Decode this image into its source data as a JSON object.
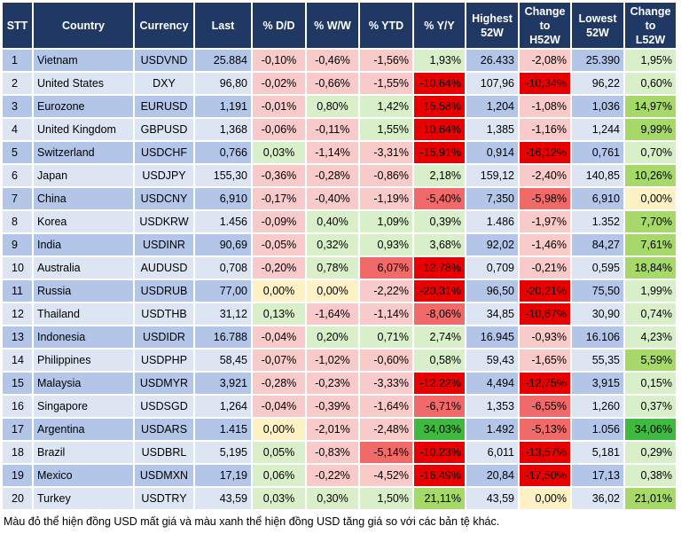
{
  "headers": [
    "STT",
    "Country",
    "Currency",
    "Last",
    "% D/D",
    "% W/W",
    "% YTD",
    "% Y/Y",
    "Highest\n52W",
    "Change\nto\nH52W",
    "Lowest\n52W",
    "Change\nto\nL52W"
  ],
  "rows": [
    {
      "stt": "1",
      "country": "Vietnam",
      "currency": "USDVND",
      "last": "25.884",
      "dd": "-0,10%",
      "ww": "-0,46%",
      "ytd": "-1,56%",
      "yy": "1,93%",
      "h52": "26.433",
      "ch52": "-2,08%",
      "l52": "25.390",
      "cl52": "1,95%",
      "t": [
        "neg1",
        "neg1",
        "neg1",
        "pos1",
        "plain",
        "neg1",
        "plain",
        "pos1"
      ]
    },
    {
      "stt": "2",
      "country": "United States",
      "currency": "DXY",
      "last": "96,80",
      "dd": "-0,02%",
      "ww": "-0,66%",
      "ytd": "-1,55%",
      "yy": "-10,64%",
      "h52": "107,96",
      "ch52": "-10,34%",
      "l52": "96,22",
      "cl52": "0,60%",
      "t": [
        "neg1",
        "neg1",
        "neg1",
        "neg3",
        "plain",
        "neg3",
        "plain",
        "pos1"
      ]
    },
    {
      "stt": "3",
      "country": "Eurozone",
      "currency": "EURUSD",
      "last": "1,191",
      "dd": "-0,01%",
      "ww": "0,80%",
      "ytd": "1,42%",
      "yy": "15,58%",
      "h52": "1,204",
      "ch52": "-1,08%",
      "l52": "1,036",
      "cl52": "14,97%",
      "t": [
        "neg1",
        "pos1",
        "pos1",
        "neg3",
        "plain",
        "neg1",
        "plain",
        "pos2"
      ]
    },
    {
      "stt": "4",
      "country": "United Kingdom",
      "currency": "GBPUSD",
      "last": "1,368",
      "dd": "-0,06%",
      "ww": "-0,11%",
      "ytd": "1,55%",
      "yy": "10,64%",
      "h52": "1,385",
      "ch52": "-1,16%",
      "l52": "1,244",
      "cl52": "9,99%",
      "t": [
        "neg1",
        "neg1",
        "pos1",
        "neg3",
        "plain",
        "neg1",
        "plain",
        "pos2"
      ]
    },
    {
      "stt": "5",
      "country": "Switzerland",
      "currency": "USDCHF",
      "last": "0,766",
      "dd": "0,03%",
      "ww": "-1,14%",
      "ytd": "-3,31%",
      "yy": "-15,91%",
      "h52": "0,914",
      "ch52": "-16,12%",
      "l52": "0,761",
      "cl52": "0,70%",
      "t": [
        "pos1",
        "neg1",
        "neg1",
        "neg3",
        "plain",
        "neg3",
        "plain",
        "pos1"
      ]
    },
    {
      "stt": "6",
      "country": "Japan",
      "currency": "USDJPY",
      "last": "155,30",
      "dd": "-0,36%",
      "ww": "-0,28%",
      "ytd": "-0,86%",
      "yy": "2,18%",
      "h52": "159,12",
      "ch52": "-2,40%",
      "l52": "140,85",
      "cl52": "10,26%",
      "t": [
        "neg1",
        "neg1",
        "neg1",
        "pos1",
        "plain",
        "neg1",
        "plain",
        "pos2"
      ]
    },
    {
      "stt": "7",
      "country": "China",
      "currency": "USDCNY",
      "last": "6,910",
      "dd": "-0,17%",
      "ww": "-0,40%",
      "ytd": "-1,19%",
      "yy": "-5,40%",
      "h52": "7,350",
      "ch52": "-5,98%",
      "l52": "6,910",
      "cl52": "0,00%",
      "t": [
        "neg1",
        "neg1",
        "neg1",
        "neg2",
        "plain",
        "neg2",
        "plain",
        "zero"
      ]
    },
    {
      "stt": "8",
      "country": "Korea",
      "currency": "USDKRW",
      "last": "1.456",
      "dd": "-0,09%",
      "ww": "0,40%",
      "ytd": "1,09%",
      "yy": "0,39%",
      "h52": "1.486",
      "ch52": "-1,97%",
      "l52": "1.352",
      "cl52": "7,70%",
      "t": [
        "neg1",
        "pos1",
        "pos1",
        "pos1",
        "plain",
        "neg1",
        "plain",
        "pos2"
      ]
    },
    {
      "stt": "9",
      "country": "India",
      "currency": "USDINR",
      "last": "90,69",
      "dd": "-0,05%",
      "ww": "0,32%",
      "ytd": "0,93%",
      "yy": "3,68%",
      "h52": "92,02",
      "ch52": "-1,46%",
      "l52": "84,27",
      "cl52": "7,61%",
      "t": [
        "neg1",
        "pos1",
        "pos1",
        "pos1",
        "plain",
        "neg1",
        "plain",
        "pos2"
      ]
    },
    {
      "stt": "10",
      "country": "Australia",
      "currency": "AUDUSD",
      "last": "0,708",
      "dd": "-0,20%",
      "ww": "0,78%",
      "ytd": "6,07%",
      "yy": "12,78%",
      "h52": "0,709",
      "ch52": "-0,21%",
      "l52": "0,595",
      "cl52": "18,84%",
      "t": [
        "neg1",
        "pos1",
        "neg2",
        "neg3",
        "plain",
        "neg1",
        "plain",
        "pos2"
      ]
    },
    {
      "stt": "11",
      "country": "Russia",
      "currency": "USDRUB",
      "last": "77,00",
      "dd": "0,00%",
      "ww": "0,00%",
      "ytd": "-2,22%",
      "yy": "-20,31%",
      "h52": "96,50",
      "ch52": "-20,21%",
      "l52": "75,50",
      "cl52": "1,99%",
      "t": [
        "zero",
        "zero",
        "neg1",
        "neg3",
        "plain",
        "neg3",
        "plain",
        "pos1"
      ]
    },
    {
      "stt": "12",
      "country": "Thailand",
      "currency": "USDTHB",
      "last": "31,12",
      "dd": "0,13%",
      "ww": "-1,64%",
      "ytd": "-1,14%",
      "yy": "-8,06%",
      "h52": "34,85",
      "ch52": "-10,67%",
      "l52": "30,90",
      "cl52": "0,74%",
      "t": [
        "pos1",
        "neg1",
        "neg1",
        "neg2",
        "plain",
        "neg3",
        "plain",
        "pos1"
      ]
    },
    {
      "stt": "13",
      "country": "Indonesia",
      "currency": "USDIDR",
      "last": "16.788",
      "dd": "-0,04%",
      "ww": "0,20%",
      "ytd": "0,71%",
      "yy": "2,74%",
      "h52": "16.945",
      "ch52": "-0,93%",
      "l52": "16.106",
      "cl52": "4,23%",
      "t": [
        "neg1",
        "pos1",
        "pos1",
        "pos1",
        "plain",
        "neg1",
        "plain",
        "pos1"
      ]
    },
    {
      "stt": "14",
      "country": "Philippines",
      "currency": "USDPHP",
      "last": "58,45",
      "dd": "-0,07%",
      "ww": "-1,02%",
      "ytd": "-0,60%",
      "yy": "0,58%",
      "h52": "59,43",
      "ch52": "-1,65%",
      "l52": "55,35",
      "cl52": "5,59%",
      "t": [
        "neg1",
        "neg1",
        "neg1",
        "pos1",
        "plain",
        "neg1",
        "plain",
        "pos2"
      ]
    },
    {
      "stt": "15",
      "country": "Malaysia",
      "currency": "USDMYR",
      "last": "3,921",
      "dd": "-0,28%",
      "ww": "-0,23%",
      "ytd": "-3,33%",
      "yy": "-12,22%",
      "h52": "4,494",
      "ch52": "-12,75%",
      "l52": "3,915",
      "cl52": "0,15%",
      "t": [
        "neg1",
        "neg1",
        "neg1",
        "neg3",
        "plain",
        "neg3",
        "plain",
        "pos1"
      ]
    },
    {
      "stt": "16",
      "country": "Singapore",
      "currency": "USDSGD",
      "last": "1,264",
      "dd": "-0,04%",
      "ww": "-0,39%",
      "ytd": "-1,64%",
      "yy": "-6,71%",
      "h52": "1,353",
      "ch52": "-6,55%",
      "l52": "1,260",
      "cl52": "0,37%",
      "t": [
        "neg1",
        "neg1",
        "neg1",
        "neg2",
        "plain",
        "neg2",
        "plain",
        "pos1"
      ]
    },
    {
      "stt": "17",
      "country": "Argentina",
      "currency": "USDARS",
      "last": "1.415",
      "dd": "0,00%",
      "ww": "-2,01%",
      "ytd": "-2,48%",
      "yy": "34,03%",
      "h52": "1.492",
      "ch52": "-5,13%",
      "l52": "1.056",
      "cl52": "34,06%",
      "t": [
        "zero",
        "neg1",
        "neg1",
        "pos3",
        "plain",
        "neg2",
        "plain",
        "pos3"
      ]
    },
    {
      "stt": "18",
      "country": "Brazil",
      "currency": "USDBRL",
      "last": "5,195",
      "dd": "0,05%",
      "ww": "-0,83%",
      "ytd": "-5,14%",
      "yy": "-10,23%",
      "h52": "6,011",
      "ch52": "-13,57%",
      "l52": "5,181",
      "cl52": "0,29%",
      "t": [
        "pos1",
        "neg1",
        "neg2",
        "neg3",
        "plain",
        "neg3",
        "plain",
        "pos1"
      ]
    },
    {
      "stt": "19",
      "country": "Mexico",
      "currency": "USDMXN",
      "last": "17,19",
      "dd": "0,06%",
      "ww": "-0,22%",
      "ytd": "-4,52%",
      "yy": "-16,49%",
      "h52": "20,84",
      "ch52": "-17,50%",
      "l52": "17,13",
      "cl52": "0,38%",
      "t": [
        "pos1",
        "neg1",
        "neg1",
        "neg3",
        "plain",
        "neg3",
        "plain",
        "pos1"
      ]
    },
    {
      "stt": "20",
      "country": "Turkey",
      "currency": "USDTRY",
      "last": "43,59",
      "dd": "0,03%",
      "ww": "0,30%",
      "ytd": "1,50%",
      "yy": "21,11%",
      "h52": "43,59",
      "ch52": "0,00%",
      "l52": "36,02",
      "cl52": "21,01%",
      "t": [
        "pos1",
        "pos1",
        "pos1",
        "pos2",
        "plain",
        "zero",
        "plain",
        "pos2"
      ]
    }
  ],
  "footnote": "Màu đỏ thể hiện đồng USD mất giá và màu xanh thể hiện đồng USD tăng giá so với các bản tệ khác.",
  "colors": {
    "header": "#1f3864",
    "row_odd": "#b4c6e7",
    "row_even": "#dde5f3",
    "red_light": "#f8caca",
    "red_mid": "#f06a6a",
    "red_strong": "#e60000",
    "green_light": "#d9efc9",
    "green_mid": "#a6d86a",
    "green_strong": "#3fb93f",
    "neutral": "#fdf1c5"
  }
}
